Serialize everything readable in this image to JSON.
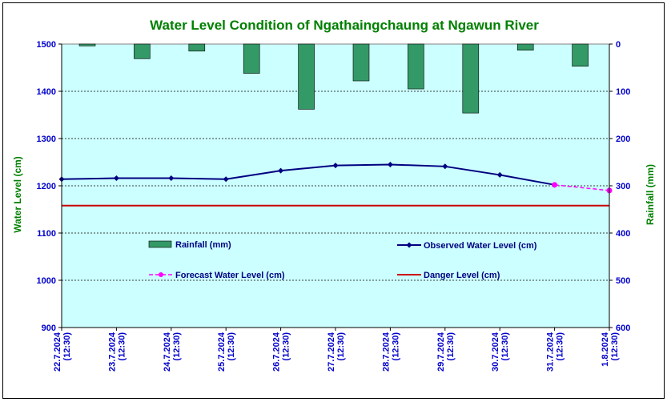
{
  "chart_data": {
    "type": "bar+line",
    "title": "Water Level Condition of  Ngathaingchaung at Ngawun River",
    "ylabel": "Water Level (cm)",
    "y2label": "Rainfall (mm)",
    "ylim": [
      900,
      1500
    ],
    "yticks": [
      900,
      1000,
      1100,
      1200,
      1300,
      1400,
      1500
    ],
    "y2lim": [
      0,
      600
    ],
    "y2ticks": [
      0,
      100,
      200,
      300,
      400,
      500,
      600
    ],
    "y2_inverted": true,
    "grid": true,
    "categories": [
      [
        "22.7.2024",
        "(12:30)"
      ],
      [
        "23.7.2024",
        "(12:30)"
      ],
      [
        "24.7.2024",
        "(12:30)"
      ],
      [
        "25.7.2024",
        "(12:30)"
      ],
      [
        "26.7.2024",
        "(12:30)"
      ],
      [
        "27.7.2024",
        "(12:30)"
      ],
      [
        "28.7.2024",
        "(12:30)"
      ],
      [
        "29.7.2024",
        "(12:30)"
      ],
      [
        "30.7.2024",
        "(12:30)"
      ],
      [
        "31.7.2024",
        "(12:30)"
      ],
      [
        "1.8.2024",
        "(12:30)"
      ]
    ],
    "series": [
      {
        "name": "Rainfall (mm)",
        "kind": "bar",
        "axis": "right",
        "color": "#339966",
        "values": [
          4,
          31,
          15,
          62,
          138,
          78,
          95,
          146,
          13,
          47,
          null
        ]
      },
      {
        "name": "Observed Water Level (cm)",
        "kind": "line",
        "axis": "left",
        "color": "#000080",
        "values": [
          1214,
          1216,
          1216,
          1214,
          1232,
          1243,
          1245,
          1241,
          1223,
          1202,
          null
        ]
      },
      {
        "name": "Forecast Water Level (cm)",
        "kind": "dashed-line",
        "axis": "left",
        "color": "#ff00ff",
        "values": [
          null,
          null,
          null,
          null,
          null,
          null,
          null,
          null,
          null,
          1202,
          1190
        ]
      },
      {
        "name": "Danger Level (cm)",
        "kind": "hline",
        "axis": "left",
        "color": "#cc0000",
        "value": 1158
      }
    ],
    "legend_placement": "inside-lower",
    "colors": {
      "plot_bg": "#ccffff",
      "title": "#008000",
      "axis_text": "#0000cc",
      "axis_title": "#008000"
    }
  }
}
